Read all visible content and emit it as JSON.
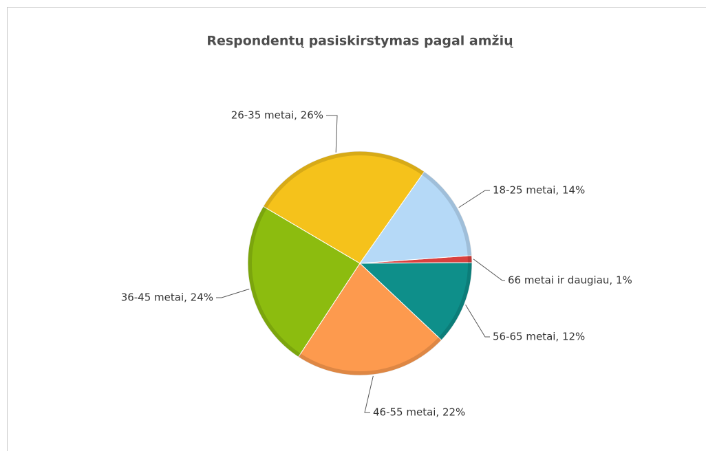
{
  "chart_data": {
    "type": "pie",
    "title": "Respondentų pasiskirstymas pagal amžių",
    "values": [
      1,
      12,
      22,
      24,
      26,
      14
    ],
    "value_labels": [
      "66 metai ir daugiau, 1%",
      "56-65 metai, 12%",
      "46-55 metai, 22%",
      "36-45 metai, 24%",
      "26-35 metai, 26%",
      "18-25 metai, 14%"
    ],
    "colors": [
      "#d9413f",
      "#0e8f8a",
      "#fd9a4e",
      "#8cbc0f",
      "#f5c21b",
      "#b5d9f7"
    ]
  }
}
